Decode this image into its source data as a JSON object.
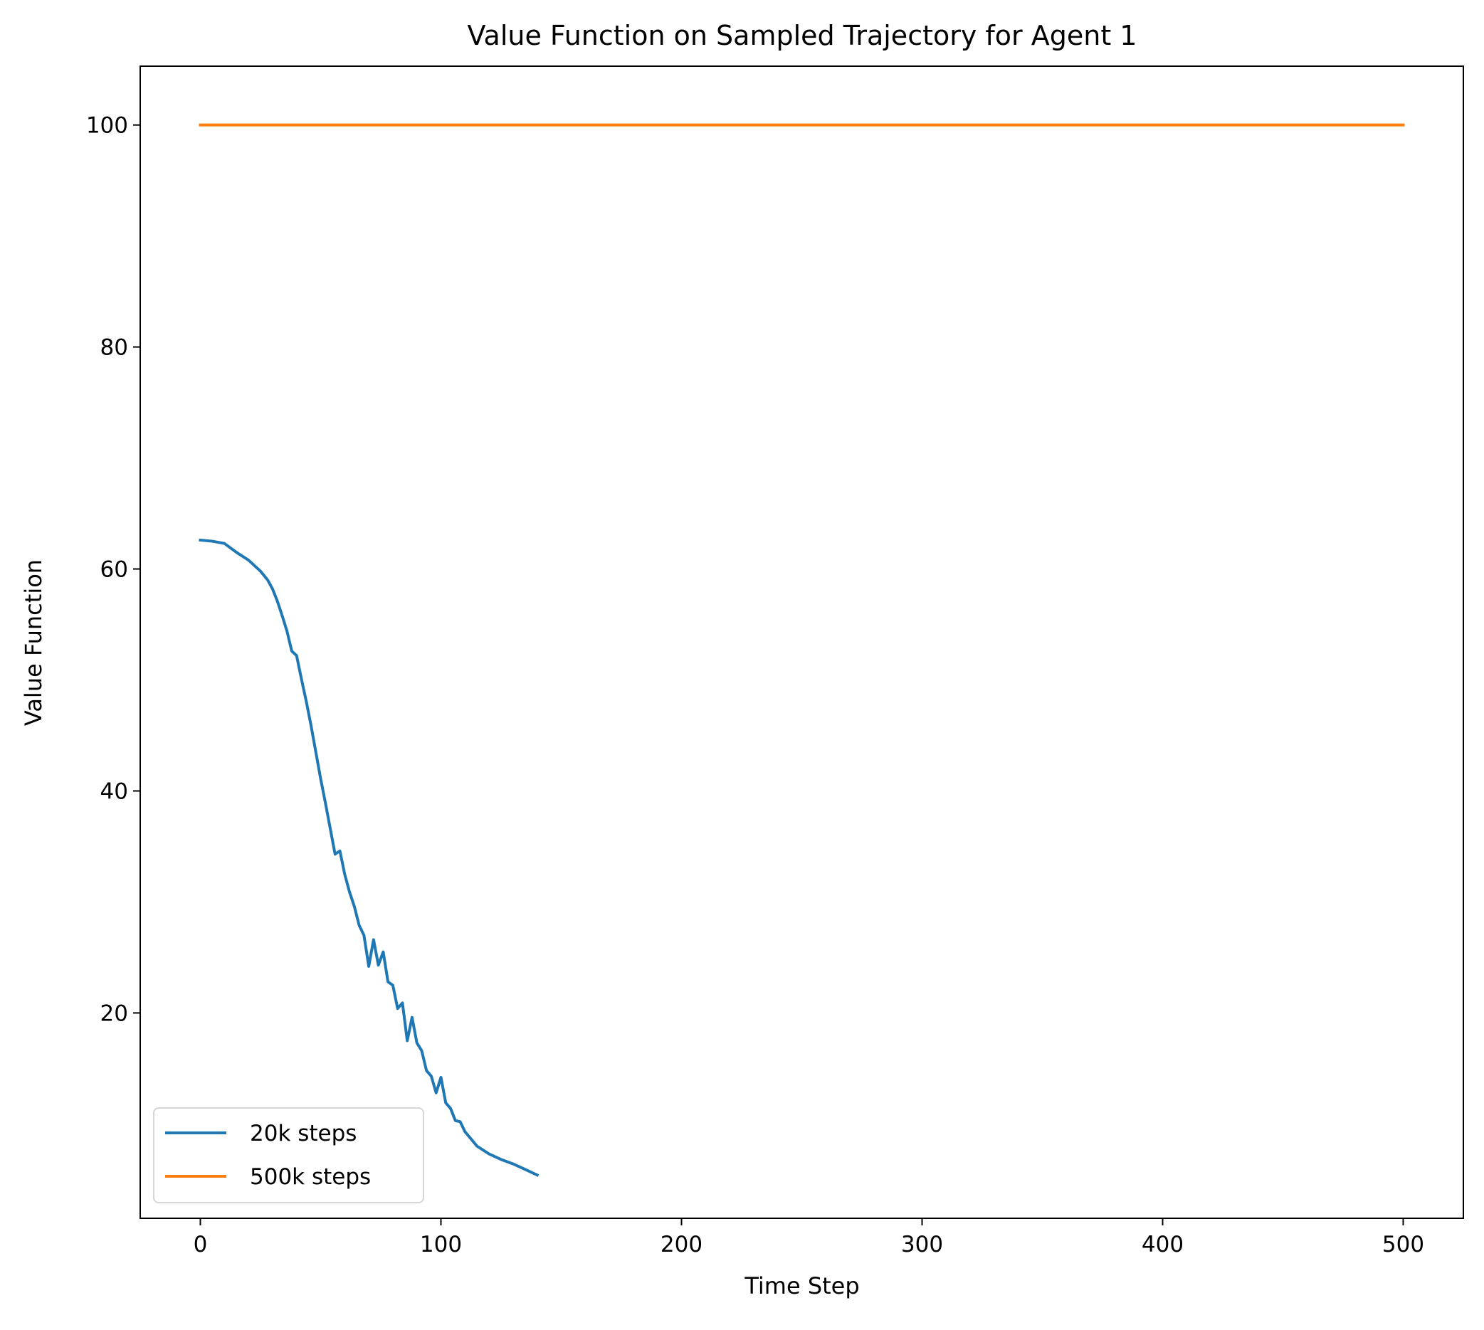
{
  "chart_data": {
    "type": "line",
    "title": "Value Function on Sampled Trajectory for Agent 1",
    "xlabel": "Time Step",
    "ylabel": "Value Function",
    "xlim": [
      -25,
      525
    ],
    "ylim": [
      1.5,
      105.3
    ],
    "xticks": [
      0,
      100,
      200,
      300,
      400,
      500
    ],
    "yticks": [
      20,
      40,
      60,
      80,
      100
    ],
    "grid": false,
    "legend_position": "lower left",
    "series": [
      {
        "name": "20k steps",
        "color": "#1f77b4",
        "x": [
          0,
          5,
          10,
          15,
          20,
          25,
          28,
          30,
          32,
          34,
          36,
          38,
          40,
          42,
          44,
          46,
          48,
          50,
          52,
          54,
          56,
          58,
          60,
          62,
          64,
          66,
          68,
          70,
          72,
          74,
          76,
          78,
          80,
          82,
          84,
          86,
          88,
          90,
          92,
          94,
          96,
          98,
          100,
          102,
          104,
          106,
          108,
          110,
          115,
          120,
          125,
          130,
          135,
          140
        ],
        "y": [
          62.6,
          62.5,
          62.3,
          61.5,
          60.8,
          59.8,
          59.0,
          58.2,
          57.1,
          55.8,
          54.4,
          52.6,
          52.2,
          50.1,
          48.1,
          45.9,
          43.5,
          41.1,
          38.9,
          36.6,
          34.3,
          34.6,
          32.5,
          30.9,
          29.6,
          27.9,
          27.0,
          24.2,
          26.6,
          24.3,
          25.5,
          22.8,
          22.5,
          20.4,
          20.9,
          17.5,
          19.6,
          17.3,
          16.6,
          14.8,
          14.3,
          12.8,
          14.2,
          11.9,
          11.4,
          10.3,
          10.2,
          9.3,
          8.0,
          7.3,
          6.8,
          6.4,
          5.9,
          5.4
        ]
      },
      {
        "name": "500k steps",
        "color": "#ff7f0e",
        "x": [
          0,
          500
        ],
        "y": [
          100.0,
          100.0
        ]
      }
    ]
  }
}
